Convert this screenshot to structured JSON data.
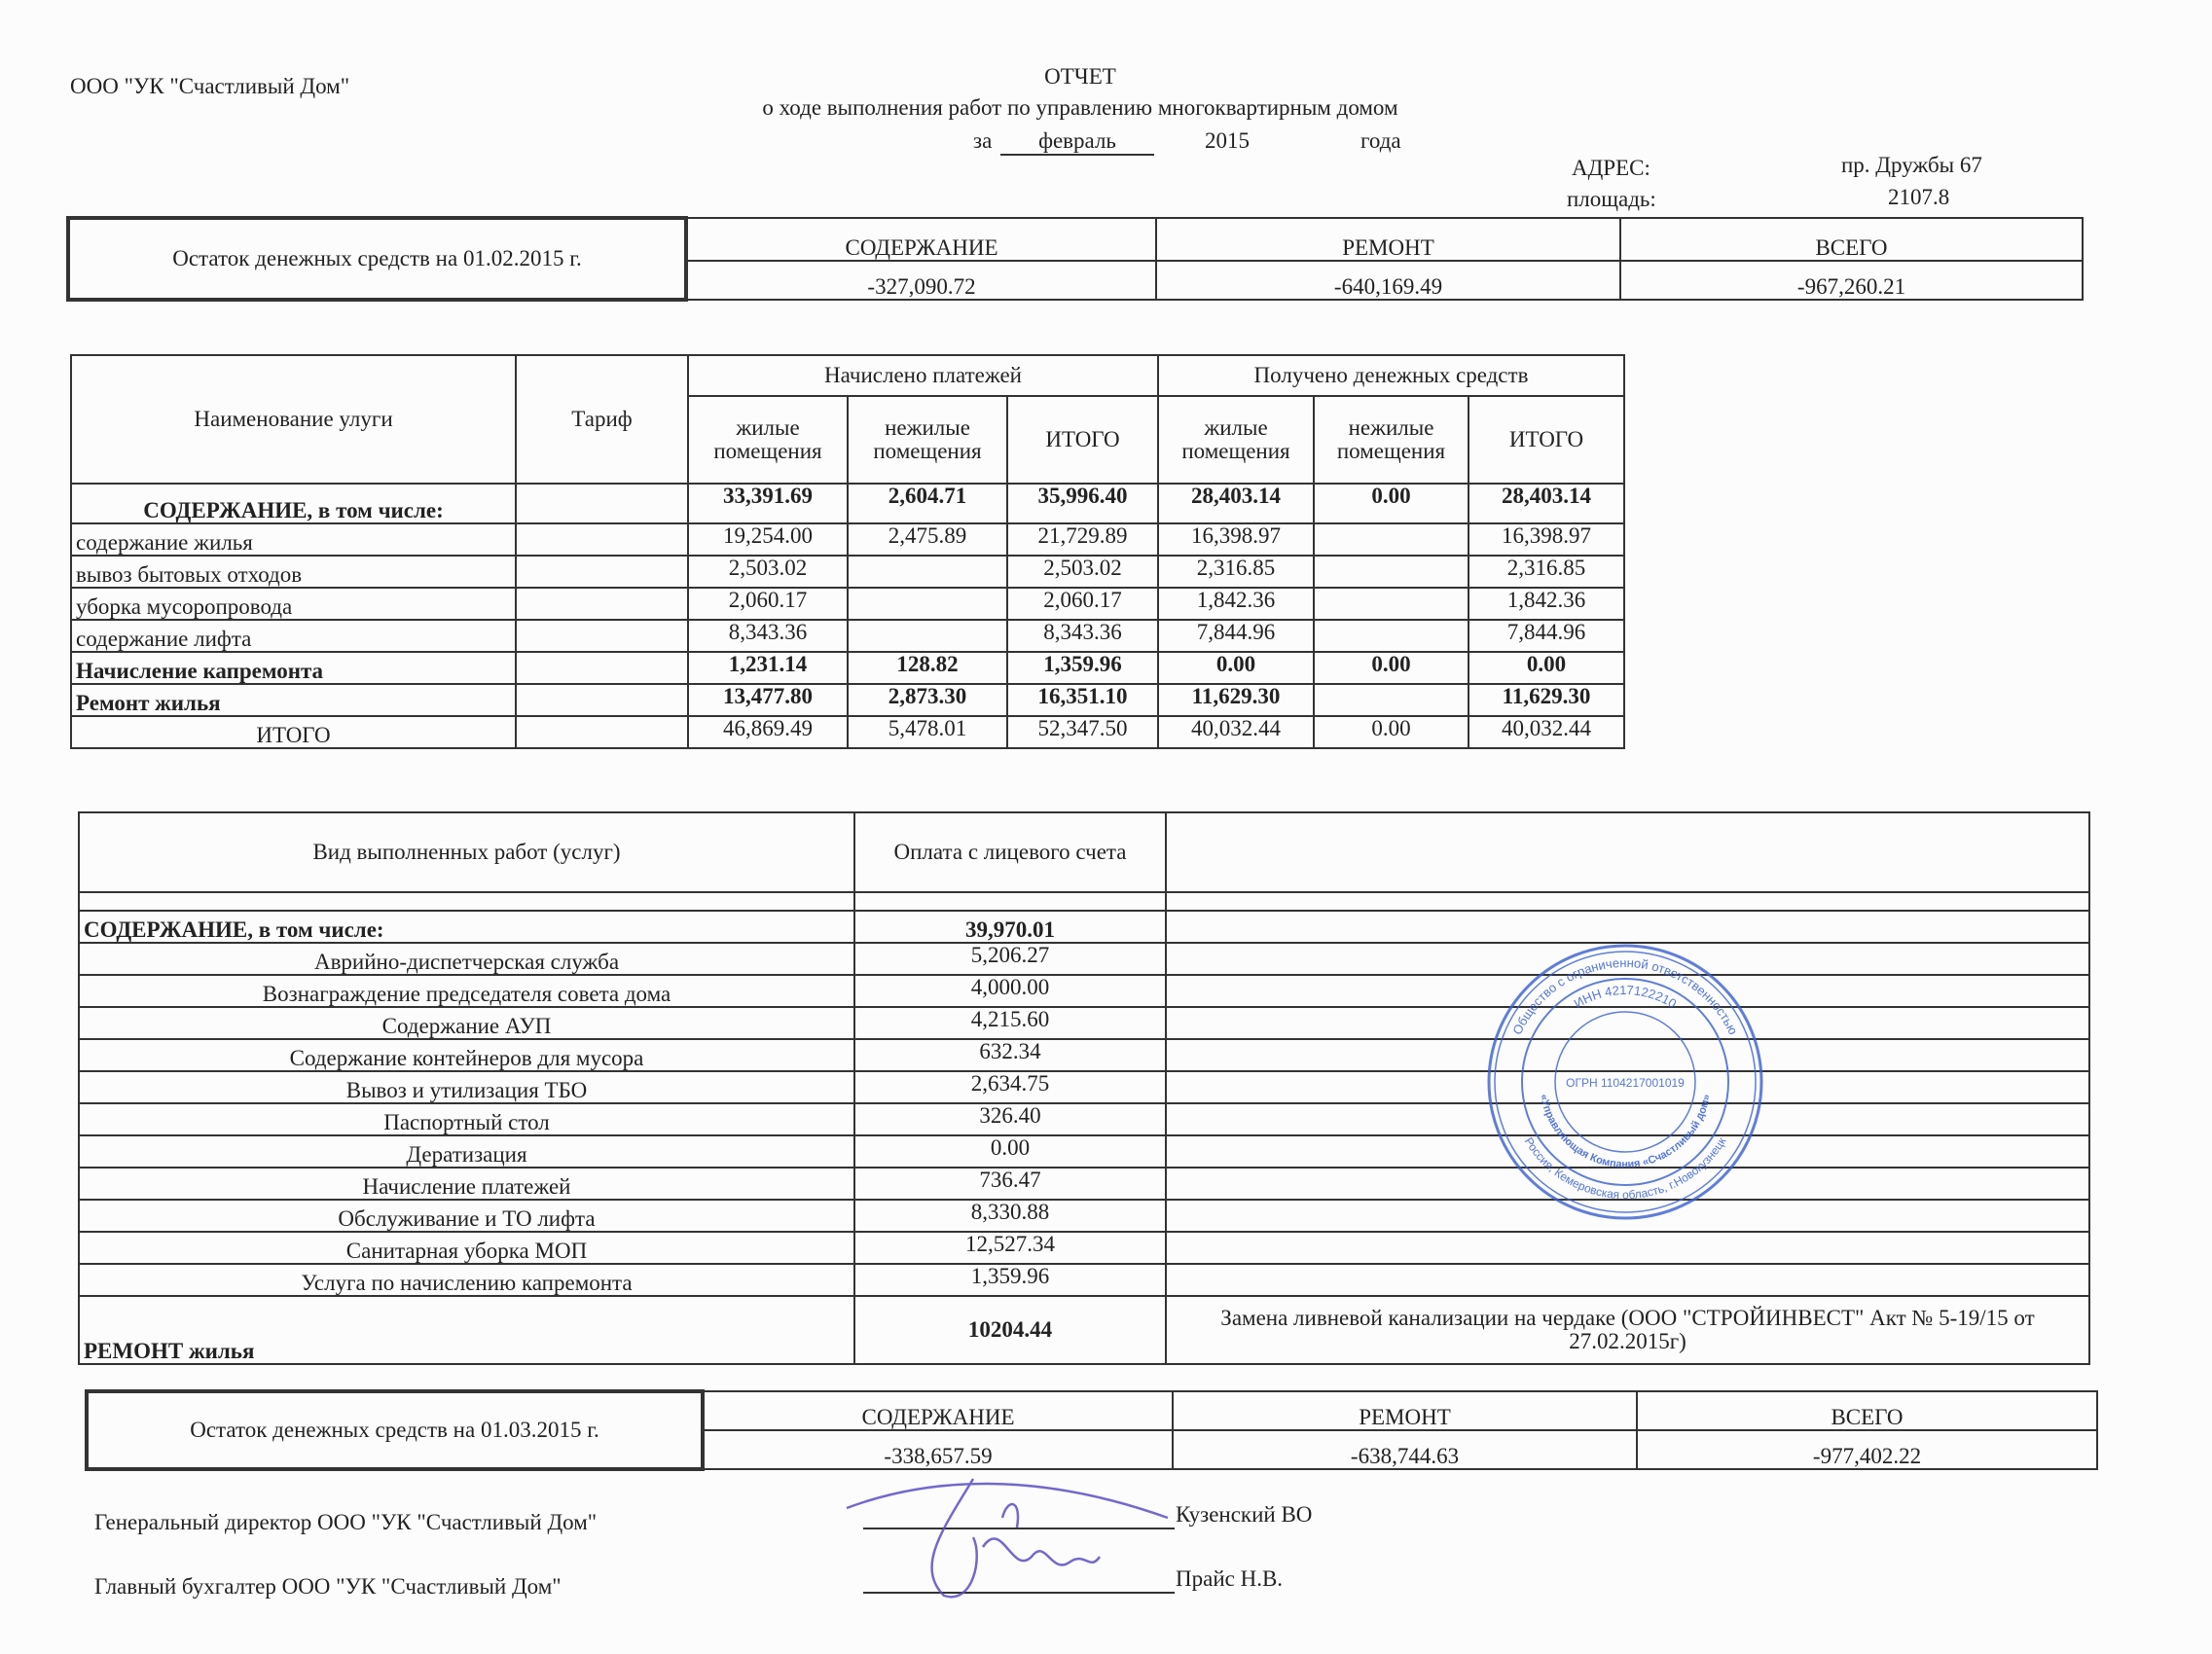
{
  "header": {
    "company": "ООО \"УК \"Счастливый Дом\"",
    "title": "ОТЧЕТ",
    "subtitle": "о ходе выполнения работ по управлению многоквартирным домом",
    "period_prefix": "за",
    "month": "февраль",
    "year": "2015",
    "period_suffix": "года",
    "address_label": "АДРЕС:",
    "address_value": "пр. Дружбы 67",
    "area_label": "площадь:",
    "area_value": "2107.8"
  },
  "opening_balance": {
    "label": "Остаток денежных средств на 01.02.2015 г.",
    "headers": [
      "СОДЕРЖАНИЕ",
      "РЕМОНТ",
      "ВСЕГО"
    ],
    "values": [
      "-327,090.72",
      "-640,169.49",
      "-967,260.21"
    ]
  },
  "charges": {
    "col_name": "Наименование улуги",
    "col_tariff": "Тариф",
    "group_charged": "Начислено платежей",
    "group_received": "Получено денежных средств",
    "sub_headers": [
      "жилые помещения",
      "нежилые помещения",
      "ИТОГО",
      "жилые помещения",
      "нежилые помещения",
      "ИТОГО"
    ],
    "rows": [
      {
        "name": "СОДЕРЖАНИЕ, в том числе:",
        "bold": true,
        "center": true,
        "values": [
          "33,391.69",
          "2,604.71",
          "35,996.40",
          "28,403.14",
          "0.00",
          "28,403.14"
        ]
      },
      {
        "name": "содержание жилья",
        "values": [
          "19,254.00",
          "2,475.89",
          "21,729.89",
          "16,398.97",
          "",
          "16,398.97"
        ]
      },
      {
        "name": "вывоз бытовых отходов",
        "values": [
          "2,503.02",
          "",
          "2,503.02",
          "2,316.85",
          "",
          "2,316.85"
        ]
      },
      {
        "name": "уборка мусоропровода",
        "values": [
          "2,060.17",
          "",
          "2,060.17",
          "1,842.36",
          "",
          "1,842.36"
        ]
      },
      {
        "name": "содержание лифта",
        "values": [
          "8,343.36",
          "",
          "8,343.36",
          "7,844.96",
          "",
          "7,844.96"
        ]
      },
      {
        "name": "Начисление капремонта",
        "bold": true,
        "values": [
          "1,231.14",
          "128.82",
          "1,359.96",
          "0.00",
          "0.00",
          "0.00"
        ]
      },
      {
        "name": "Ремонт жилья",
        "bold": true,
        "values": [
          "13,477.80",
          "2,873.30",
          "16,351.10",
          "11,629.30",
          "",
          "11,629.30"
        ]
      },
      {
        "name": "ИТОГО",
        "center": true,
        "values": [
          "46,869.49",
          "5,478.01",
          "52,347.50",
          "40,032.44",
          "0.00",
          "40,032.44"
        ]
      }
    ]
  },
  "works": {
    "col_type": "Вид выполненных работ (услуг)",
    "col_payment": "Оплата с лицевого счета",
    "section": {
      "name": "СОДЕРЖАНИЕ,  в том числе:",
      "value": "39,970.01"
    },
    "rows": [
      {
        "name": "Аврийно-диспетчерская служба",
        "value": "5,206.27"
      },
      {
        "name": "Вознаграждение председателя совета дома",
        "value": "4,000.00"
      },
      {
        "name": "Содержание АУП",
        "value": "4,215.60"
      },
      {
        "name": "Содержание контейнеров для мусора",
        "value": "632.34"
      },
      {
        "name": "Вывоз и утилизация ТБО",
        "value": "2,634.75"
      },
      {
        "name": "Паспортный стол",
        "value": "326.40"
      },
      {
        "name": "Дератизация",
        "value": "0.00"
      },
      {
        "name": "Начисление платежей",
        "value": "736.47"
      },
      {
        "name": "Обслуживание и ТО лифта",
        "value": "8,330.88"
      },
      {
        "name": "Санитарная уборка МОП",
        "value": "12,527.34"
      },
      {
        "name": "Услуга по начислению капремонта",
        "value": "1,359.96"
      }
    ],
    "repair": {
      "name": "РЕМОНТ жилья",
      "value": "10204.44",
      "note": "Замена ливневой канализации на чердаке (ООО \"СТРОЙИНВЕСТ\" Акт № 5-19/15 от 27.02.2015г)"
    }
  },
  "closing_balance": {
    "label": "Остаток денежных средств на 01.03.2015 г.",
    "headers": [
      "СОДЕРЖАНИЕ",
      "РЕМОНТ",
      "ВСЕГО"
    ],
    "values": [
      "-338,657.59",
      "-638,744.63",
      "-977,402.22"
    ]
  },
  "signatures": [
    {
      "role": "Генеральный директор ООО \"УК \"Счастливый Дом\"",
      "name": "Кузенский ВО"
    },
    {
      "role": "Главный бухгалтер ООО \"УК \"Счастливый Дом\"",
      "name": "Прайс Н.В."
    }
  ],
  "stamp": {
    "text_outer": "Общество с ограниченной ответственностью",
    "inn": "ИНН 4217122210",
    "name": "«Управляющая Компания «Счастливый дом»",
    "ogrn": "ОГРН 1104217001019",
    "city": "Россия, Кемеровская область, г.Новокузнецк",
    "color": "#3a5fd0"
  },
  "colors": {
    "ink": "#222222",
    "paper": "#fbfcfb",
    "stamp": "#3a5fd0",
    "signature": "#5b4fc4"
  }
}
